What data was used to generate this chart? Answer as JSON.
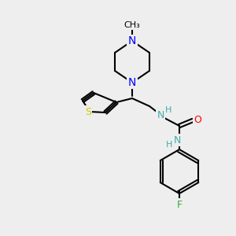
{
  "bg_color": "#eeeeee",
  "bond_color": "#000000",
  "N_color": "#0000ff",
  "O_color": "#ff0000",
  "S_color": "#cccc00",
  "F_color": "#33aa33",
  "NH_color": "#44aaaa",
  "line_width": 1.5,
  "font_size": 9,
  "methyl_label": "CH₃",
  "piperazine_N_top": "N",
  "piperazine_N_bot": "N",
  "O_label": "O",
  "S_label": "S",
  "F_label": "F",
  "NH_label": "H",
  "NH2_label": "H"
}
